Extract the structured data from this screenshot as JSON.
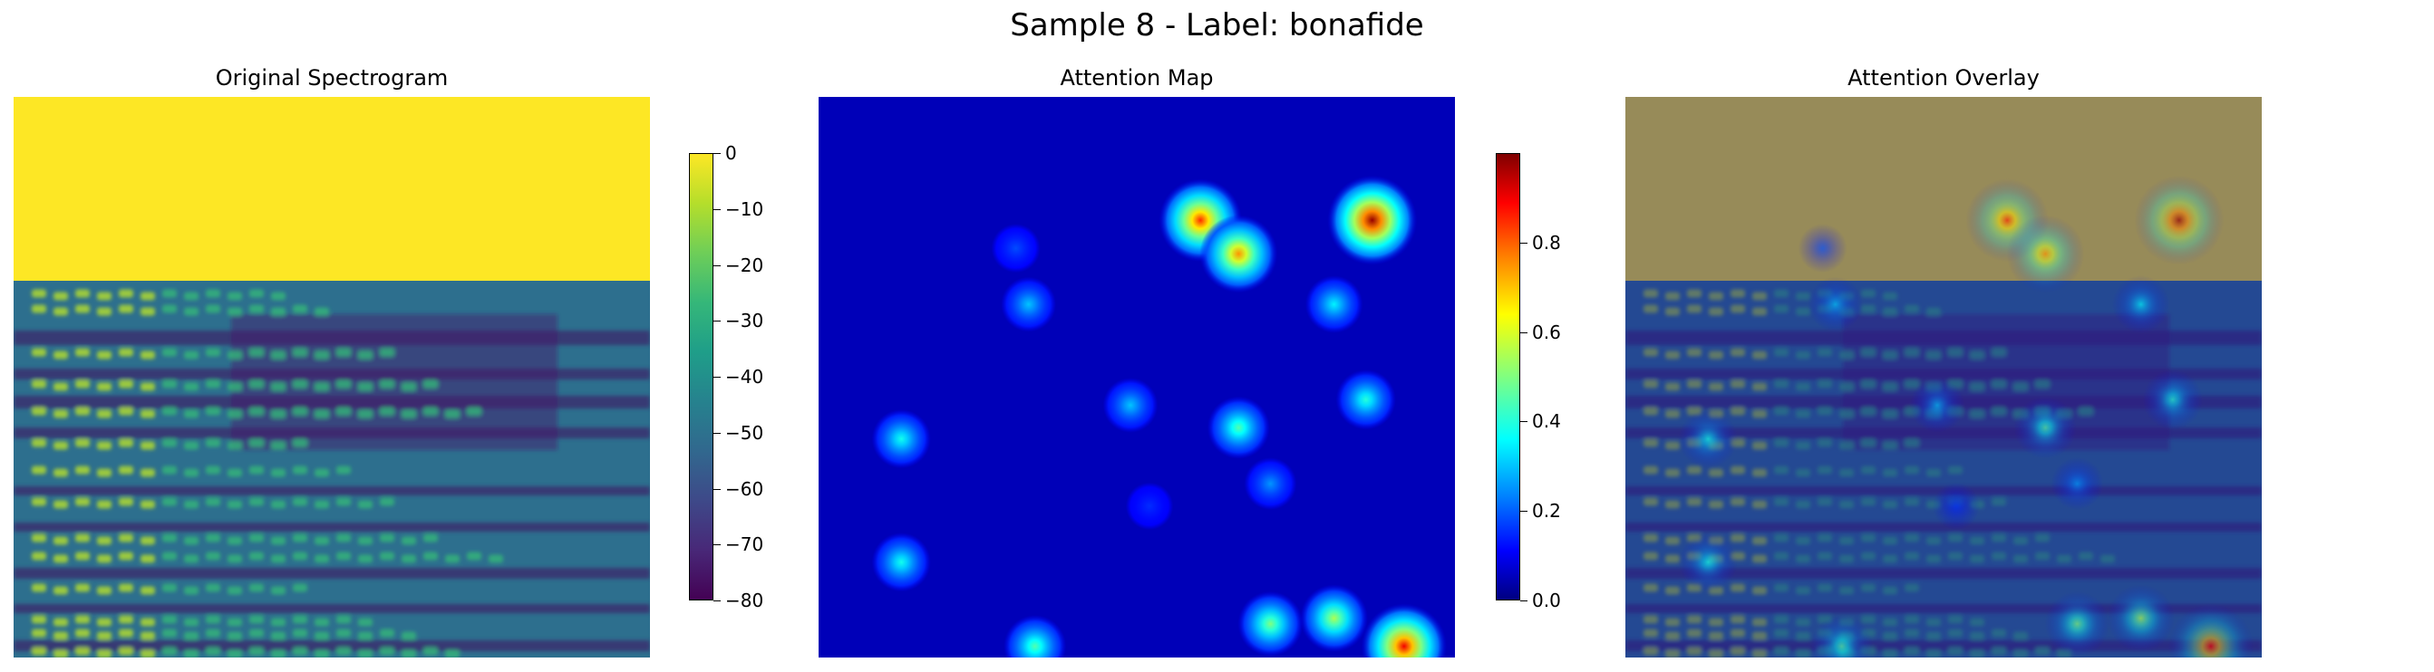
{
  "figure": {
    "suptitle": "Sample 8 - Label: bonafide"
  },
  "panels": [
    {
      "title": "Original Spectrogram"
    },
    {
      "title": "Attention Map"
    },
    {
      "title": "Attention Overlay"
    }
  ],
  "chart_data": [
    {
      "type": "heatmap",
      "title": "Original Spectrogram",
      "colormap": "viridis",
      "colorbar": {
        "range": [
          -80,
          0
        ],
        "ticks": [
          0,
          -10,
          -20,
          -30,
          -40,
          -50,
          -60,
          -70,
          -80
        ],
        "tick_labels": [
          "0",
          "−10",
          "−20",
          "−30",
          "−40",
          "−50",
          "−60",
          "−70",
          "−80"
        ]
      },
      "regions": [
        {
          "description": "top band (padded region)",
          "value_db": 0,
          "color": "#fde725"
        },
        {
          "description": "lower band harmonics",
          "value_range_db": [
            -80,
            -5
          ]
        }
      ],
      "axes": "off"
    },
    {
      "type": "heatmap",
      "title": "Attention Map",
      "colormap": "jet",
      "colorbar": {
        "range": [
          0,
          1
        ],
        "ticks": [
          0.0,
          0.2,
          0.4,
          0.6,
          0.8
        ],
        "tick_labels": [
          "0.0",
          "0.2",
          "0.4",
          "0.6",
          "0.8"
        ]
      },
      "hotspots": [
        {
          "x": 0.6,
          "y": 0.78,
          "value": 0.85
        },
        {
          "x": 0.66,
          "y": 0.72,
          "value": 0.75
        },
        {
          "x": 0.87,
          "y": 0.78,
          "value": 0.98
        },
        {
          "x": 0.81,
          "y": 0.63,
          "value": 0.35
        },
        {
          "x": 0.33,
          "y": 0.63,
          "value": 0.3
        },
        {
          "x": 0.49,
          "y": 0.45,
          "value": 0.3
        },
        {
          "x": 0.66,
          "y": 0.41,
          "value": 0.45
        },
        {
          "x": 0.86,
          "y": 0.46,
          "value": 0.4
        },
        {
          "x": 0.13,
          "y": 0.39,
          "value": 0.38
        },
        {
          "x": 0.71,
          "y": 0.31,
          "value": 0.25
        },
        {
          "x": 0.13,
          "y": 0.17,
          "value": 0.38
        },
        {
          "x": 0.71,
          "y": 0.06,
          "value": 0.5
        },
        {
          "x": 0.81,
          "y": 0.07,
          "value": 0.55
        },
        {
          "x": 0.34,
          "y": 0.02,
          "value": 0.45
        },
        {
          "x": 0.92,
          "y": 0.02,
          "value": 0.9
        },
        {
          "x": 0.31,
          "y": 0.73,
          "value": 0.18
        },
        {
          "x": 0.52,
          "y": 0.27,
          "value": 0.15
        }
      ],
      "axes": "off"
    },
    {
      "type": "heatmap",
      "title": "Attention Overlay",
      "description_of_layers": [
        "Original Spectrogram",
        "Attention Map"
      ],
      "axes": "off"
    }
  ]
}
